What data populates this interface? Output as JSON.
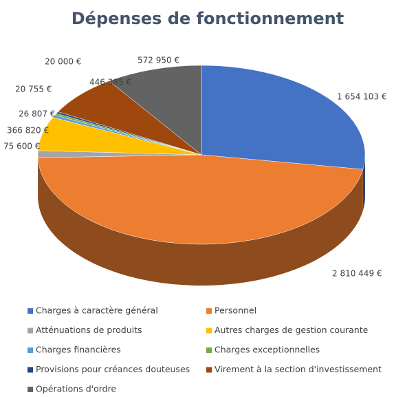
{
  "chart_data": {
    "type": "pie3d",
    "title": "Dépenses de fonctionnement",
    "categories": [
      "Charges à caractère général",
      "Personnel",
      "Atténuations de produits",
      "Autres charges de gestion courante",
      "Charges financières",
      "Charges exceptionnelles",
      "Provisions pour créances douteuses",
      "Virement à la section d'investissement",
      "Opérations d'ordre"
    ],
    "values": [
      1654103,
      2810449,
      75600,
      366820,
      26807,
      20755,
      20000,
      446385,
      572950
    ],
    "value_labels": [
      "1 654 103 €",
      "2 810 449 €",
      "75 600 €",
      "366 820 €",
      "26 807 €",
      "20 755 €",
      "20 000 €",
      "446 385 €",
      "572 950 €"
    ],
    "colors": [
      "#4472c4",
      "#ed7d31",
      "#a5a5a5",
      "#ffc000",
      "#5b9bd5",
      "#70ad47",
      "#264478",
      "#9e480e",
      "#636363"
    ],
    "legend": "bottom"
  }
}
